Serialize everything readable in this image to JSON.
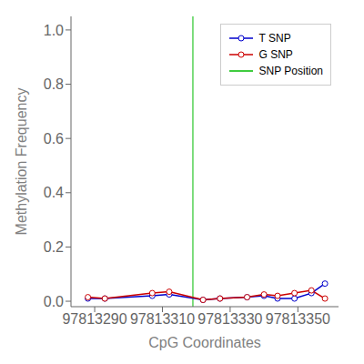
{
  "chart_data": {
    "type": "line",
    "xlabel": "CpG Coordinates",
    "ylabel": "Methylation Frequency",
    "x": [
      97813288,
      97813293,
      97813307,
      97813312,
      97813322,
      97813327,
      97813335,
      97813340,
      97813344,
      97813349,
      97813354,
      97813358
    ],
    "series": [
      {
        "name": "T SNP",
        "color": "#0000cc",
        "marker": "circle",
        "values": [
          0.01,
          0.01,
          0.02,
          0.025,
          0.005,
          0.01,
          0.015,
          0.02,
          0.01,
          0.01,
          0.03,
          0.065
        ]
      },
      {
        "name": "G SNP",
        "color": "#cc0000",
        "marker": "circle",
        "values": [
          0.015,
          0.01,
          0.03,
          0.035,
          0.005,
          0.01,
          0.015,
          0.025,
          0.02,
          0.03,
          0.04,
          0.01
        ]
      }
    ],
    "vline": {
      "name": "SNP Position",
      "x": 97813319,
      "color": "#00bb00"
    },
    "xlim": [
      97813283,
      97813362
    ],
    "xticks": [
      97813290,
      97813310,
      97813330,
      97813350
    ],
    "ylim": [
      -0.02,
      1.05
    ],
    "yticks": [
      {
        "value": 0.0,
        "label": "0.0"
      },
      0.2,
      0.4,
      0.6,
      0.8,
      {
        "value": 1.0,
        "label": "1.0"
      }
    ],
    "grid": false,
    "legend": "upper right"
  }
}
